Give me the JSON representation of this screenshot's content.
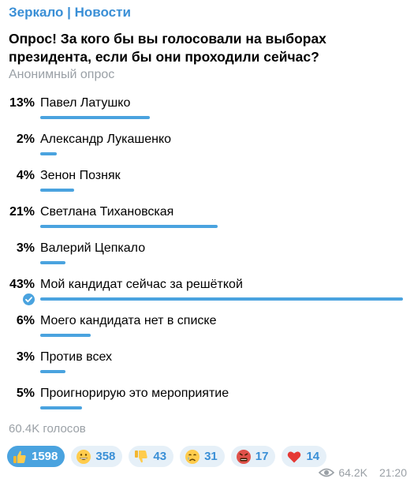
{
  "channel": "Зеркало | Новости",
  "question": "Опрос! За кого бы вы голосовали на выборах президента, если бы они проходили сейчас?",
  "poll_type": "Анонимный опрос",
  "options": [
    {
      "percent_label": "13%",
      "label": "Павел Латушко",
      "percent": 13,
      "chosen": false
    },
    {
      "percent_label": "2%",
      "label": "Александр Лукашенко",
      "percent": 2,
      "chosen": false
    },
    {
      "percent_label": "4%",
      "label": "Зенон Позняк",
      "percent": 4,
      "chosen": false
    },
    {
      "percent_label": "21%",
      "label": "Светлана Тихановская",
      "percent": 21,
      "chosen": false
    },
    {
      "percent_label": "3%",
      "label": "Валерий Цепкало",
      "percent": 3,
      "chosen": false
    },
    {
      "percent_label": "43%",
      "label": "Мой кандидат сейчас за решёткой",
      "percent": 43,
      "chosen": true
    },
    {
      "percent_label": "6%",
      "label": "Моего кандидата нет в списке",
      "percent": 6,
      "chosen": false
    },
    {
      "percent_label": "3%",
      "label": "Против всех",
      "percent": 3,
      "chosen": false
    },
    {
      "percent_label": "5%",
      "label": "Проигнорирую это мероприятие",
      "percent": 5,
      "chosen": false
    }
  ],
  "total_votes": "60.4K голосов",
  "reactions": [
    {
      "icon": "thumbs-up-icon",
      "count": "1598",
      "active": true
    },
    {
      "icon": "grinning-face-icon",
      "count": "358",
      "active": false
    },
    {
      "icon": "thumbs-down-icon",
      "count": "43",
      "active": false
    },
    {
      "icon": "crying-face-icon",
      "count": "31",
      "active": false
    },
    {
      "icon": "angry-face-icon",
      "count": "17",
      "active": false
    },
    {
      "icon": "heart-icon",
      "count": "14",
      "active": false
    }
  ],
  "views": "64.2K",
  "time": "21:20",
  "colors": {
    "accent": "#4aa3df",
    "channel": "#3a8fd6",
    "muted": "#9aa0a6",
    "reaction_bg": "#e6f0f8"
  }
}
